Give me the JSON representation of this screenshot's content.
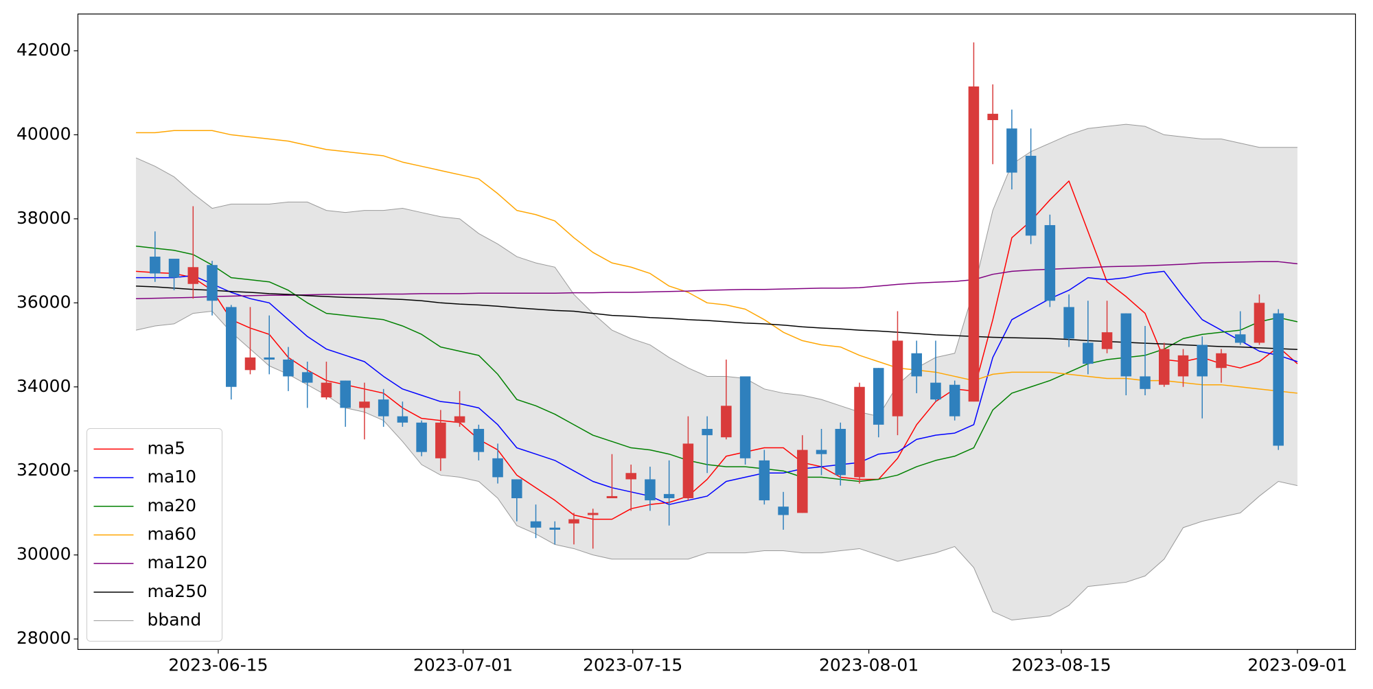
{
  "chart_data": {
    "type": "candlestick",
    "x": [
      0,
      1,
      2,
      3,
      4,
      5,
      6,
      7,
      8,
      9,
      10,
      11,
      12,
      13,
      14,
      15,
      16,
      17,
      18,
      19,
      20,
      21,
      22,
      23,
      24,
      25,
      26,
      27,
      28,
      29,
      30,
      31,
      32,
      33,
      34,
      35,
      36,
      37,
      38,
      39,
      40,
      41,
      42,
      43,
      44,
      45,
      46,
      47,
      48,
      49,
      50,
      51,
      52,
      53,
      54,
      55,
      56,
      57,
      58,
      59,
      60,
      61
    ],
    "open": [
      null,
      37100,
      37050,
      36450,
      36900,
      35900,
      34400,
      34700,
      34650,
      34350,
      33750,
      34150,
      33500,
      33700,
      33300,
      33150,
      32300,
      33150,
      33000,
      32300,
      31800,
      30800,
      30650,
      30750,
      30950,
      31350,
      31800,
      31800,
      31450,
      31350,
      33000,
      32800,
      34250,
      32250,
      31150,
      31000,
      32500,
      33000,
      31850,
      34450,
      33300,
      34800,
      34100,
      34050,
      33650,
      40350,
      40150,
      39500,
      37850,
      35900,
      35050,
      34900,
      35750,
      34250,
      34050,
      34250,
      35000,
      34450,
      35250,
      35050,
      35750,
      null
    ],
    "high": [
      null,
      37700,
      37050,
      38300,
      37000,
      35950,
      35900,
      35700,
      34950,
      34600,
      34600,
      34150,
      34100,
      33950,
      33650,
      33200,
      33450,
      33900,
      33100,
      32650,
      31800,
      31200,
      30800,
      31000,
      31100,
      32400,
      32150,
      32100,
      32250,
      33300,
      33300,
      34650,
      34250,
      32500,
      31500,
      32850,
      33000,
      33150,
      34100,
      34450,
      35800,
      35100,
      35100,
      34150,
      42200,
      41200,
      40600,
      40150,
      38100,
      36200,
      36050,
      36050,
      35750,
      35450,
      35050,
      34900,
      35200,
      34900,
      35800,
      36200,
      35850,
      null
    ],
    "low": [
      null,
      36500,
      36300,
      36100,
      35700,
      33700,
      34300,
      34300,
      33900,
      33500,
      33700,
      33050,
      32750,
      33050,
      33050,
      32350,
      32000,
      33050,
      32250,
      31700,
      30800,
      30400,
      30250,
      30250,
      30150,
      31350,
      31050,
      31050,
      30700,
      31300,
      31950,
      32750,
      32150,
      31200,
      30600,
      31000,
      31900,
      31650,
      31700,
      32800,
      32850,
      33850,
      33650,
      33200,
      33650,
      39300,
      38700,
      37400,
      35900,
      34950,
      34300,
      34800,
      33800,
      33800,
      34000,
      34000,
      33250,
      34100,
      35000,
      35000,
      32500,
      null
    ],
    "close": [
      null,
      36700,
      36600,
      36850,
      36050,
      34000,
      34700,
      34650,
      34250,
      34100,
      34100,
      33500,
      33650,
      33300,
      33150,
      32450,
      33150,
      33300,
      32450,
      31850,
      31350,
      30650,
      30600,
      30850,
      31000,
      31400,
      31950,
      31300,
      31350,
      32650,
      32850,
      33550,
      32300,
      31300,
      30950,
      32500,
      32400,
      31900,
      34000,
      33100,
      35100,
      34250,
      33700,
      33300,
      41150,
      40500,
      39100,
      37600,
      36050,
      35150,
      34550,
      35300,
      34250,
      33950,
      34900,
      34750,
      34250,
      34800,
      35050,
      36000,
      32600,
      null
    ],
    "up_color": "#d93b3b",
    "down_color": "#2f80bd",
    "series": [
      {
        "name": "ma5",
        "color": "#ff0000",
        "values": [
          36750,
          36720,
          36700,
          36600,
          36300,
          35600,
          35400,
          35250,
          34700,
          34400,
          34150,
          34050,
          33950,
          33850,
          33500,
          33250,
          33200,
          33150,
          32750,
          32500,
          31900,
          31600,
          31300,
          30950,
          30850,
          30850,
          31100,
          31200,
          31250,
          31400,
          31800,
          32350,
          32450,
          32550,
          32550,
          32200,
          32100,
          31850,
          31800,
          31800,
          32300,
          33100,
          33650,
          33950,
          33900,
          35600,
          37550,
          37950,
          38450,
          38900,
          37700,
          36500,
          36150,
          35750,
          34650,
          34600,
          34700,
          34550,
          34450,
          34600,
          34950,
          34550
        ]
      },
      {
        "name": "ma10",
        "color": "#0000ff",
        "values": [
          36600,
          36600,
          36600,
          36650,
          36450,
          36250,
          36100,
          36000,
          35600,
          35200,
          34900,
          34750,
          34600,
          34250,
          33950,
          33800,
          33650,
          33600,
          33500,
          33100,
          32550,
          32400,
          32250,
          32000,
          31750,
          31600,
          31500,
          31400,
          31200,
          31300,
          31400,
          31750,
          31850,
          31950,
          31950,
          32050,
          32100,
          32150,
          32200,
          32400,
          32450,
          32750,
          32850,
          32900,
          33100,
          34700,
          35600,
          35850,
          36100,
          36300,
          36600,
          36550,
          36600,
          36700,
          36750,
          36150,
          35600,
          35350,
          35100,
          34850,
          34750,
          34600
        ]
      },
      {
        "name": "ma20",
        "color": "#008000",
        "values": [
          37350,
          37300,
          37250,
          37150,
          36900,
          36600,
          36550,
          36500,
          36300,
          36000,
          35750,
          35700,
          35650,
          35600,
          35450,
          35250,
          34950,
          34850,
          34750,
          34300,
          33700,
          33550,
          33350,
          33100,
          32850,
          32700,
          32550,
          32500,
          32400,
          32250,
          32150,
          32100,
          32100,
          32050,
          32000,
          31850,
          31850,
          31800,
          31750,
          31800,
          31900,
          32100,
          32250,
          32350,
          32550,
          33450,
          33850,
          34000,
          34150,
          34350,
          34550,
          34650,
          34700,
          34750,
          34900,
          35150,
          35250,
          35300,
          35350,
          35550,
          35650,
          35550
        ]
      },
      {
        "name": "ma60",
        "color": "#ffa500",
        "values": [
          40050,
          40050,
          40100,
          40100,
          40100,
          40000,
          39950,
          39900,
          39850,
          39750,
          39650,
          39600,
          39550,
          39500,
          39350,
          39250,
          39150,
          39050,
          38950,
          38600,
          38200,
          38100,
          37950,
          37550,
          37200,
          36950,
          36850,
          36700,
          36400,
          36250,
          36000,
          35950,
          35850,
          35600,
          35300,
          35100,
          35000,
          34950,
          34750,
          34600,
          34450,
          34400,
          34350,
          34250,
          34150,
          34300,
          34350,
          34350,
          34350,
          34300,
          34250,
          34200,
          34200,
          34150,
          34150,
          34100,
          34050,
          34050,
          34000,
          33950,
          33900,
          33850
        ]
      },
      {
        "name": "ma120",
        "color": "#800080",
        "values": [
          36100,
          36110,
          36120,
          36130,
          36150,
          36160,
          36170,
          36180,
          36180,
          36190,
          36200,
          36200,
          36200,
          36210,
          36210,
          36220,
          36220,
          36220,
          36230,
          36230,
          36230,
          36230,
          36230,
          36240,
          36240,
          36250,
          36250,
          36260,
          36270,
          36280,
          36300,
          36310,
          36320,
          36320,
          36330,
          36340,
          36350,
          36350,
          36360,
          36400,
          36440,
          36470,
          36490,
          36510,
          36550,
          36680,
          36750,
          36780,
          36800,
          36820,
          36840,
          36860,
          36870,
          36880,
          36900,
          36920,
          36950,
          36960,
          36970,
          36980,
          36980,
          36930
        ]
      },
      {
        "name": "ma250",
        "color": "#000000",
        "values": [
          36400,
          36380,
          36350,
          36320,
          36300,
          36270,
          36250,
          36220,
          36200,
          36170,
          36150,
          36130,
          36120,
          36100,
          36080,
          36050,
          36000,
          35970,
          35950,
          35920,
          35880,
          35850,
          35820,
          35800,
          35750,
          35700,
          35680,
          35650,
          35630,
          35600,
          35580,
          35550,
          35520,
          35500,
          35470,
          35430,
          35400,
          35380,
          35350,
          35330,
          35300,
          35270,
          35240,
          35220,
          35200,
          35180,
          35170,
          35160,
          35150,
          35130,
          35100,
          35080,
          35060,
          35040,
          35020,
          35000,
          34980,
          34960,
          34950,
          34930,
          34910,
          34890
        ]
      },
      {
        "name": "bband",
        "color": "#999999",
        "fill": "#e5e5e5",
        "upper": [
          39450,
          39250,
          39000,
          38600,
          38250,
          38350,
          38350,
          38350,
          38400,
          38400,
          38200,
          38150,
          38200,
          38200,
          38250,
          38150,
          38050,
          38000,
          37650,
          37400,
          37100,
          36950,
          36850,
          36200,
          35750,
          35350,
          35150,
          35000,
          34700,
          34450,
          34250,
          34250,
          34200,
          33950,
          33850,
          33800,
          33700,
          33550,
          33400,
          33300,
          34050,
          34450,
          34700,
          34800,
          36300,
          38200,
          39300,
          39600,
          39800,
          40000,
          40150,
          40200,
          40250,
          40200,
          40000,
          39950,
          39900,
          39900,
          39800,
          39700,
          39700,
          39700
        ],
        "lower": [
          35350,
          35450,
          35500,
          35750,
          35800,
          35300,
          34900,
          34500,
          34300,
          34050,
          33800,
          33500,
          33400,
          33200,
          32700,
          32150,
          31900,
          31850,
          31750,
          31350,
          30700,
          30500,
          30250,
          30150,
          30000,
          29900,
          29900,
          29900,
          29900,
          29900,
          30050,
          30050,
          30050,
          30100,
          30100,
          30050,
          30050,
          30100,
          30150,
          30000,
          29850,
          29950,
          30050,
          30200,
          29700,
          28650,
          28450,
          28500,
          28550,
          28800,
          29250,
          29300,
          29350,
          29500,
          29900,
          30650,
          30800,
          30900,
          31000,
          31400,
          31750,
          31650
        ]
      }
    ],
    "xlim": [
      -3.05,
      64.05
    ],
    "ylim": [
      27750,
      42875
    ],
    "xticks": [
      {
        "value": 4.32,
        "label": "2023-06-15"
      },
      {
        "value": 17.18,
        "label": "2023-07-01"
      },
      {
        "value": 26.09,
        "label": "2023-07-15"
      },
      {
        "value": 38.49,
        "label": "2023-08-01"
      },
      {
        "value": 48.6,
        "label": "2023-08-15"
      },
      {
        "value": 61,
        "label": "2023-09-01"
      }
    ],
    "yticks": [
      28000,
      30000,
      32000,
      34000,
      36000,
      38000,
      40000,
      42000
    ],
    "grid": false,
    "legend": "lower left"
  }
}
